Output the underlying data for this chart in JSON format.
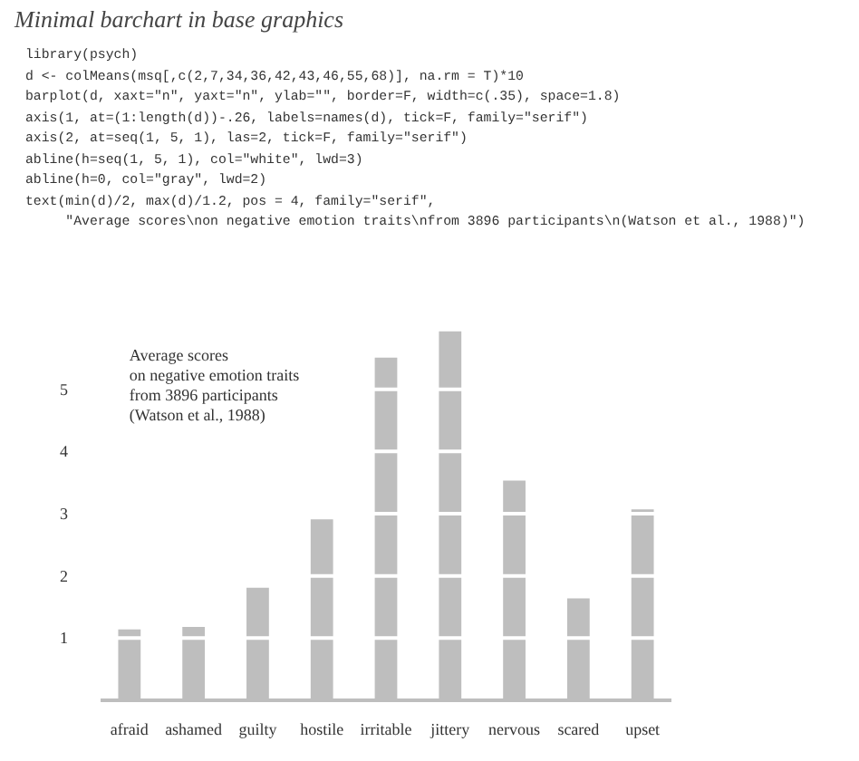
{
  "chart_data": {
    "type": "bar",
    "title": "Minimal barchart in base graphics",
    "subtitle": "library(psych)\nd <- colMeans(msq[,c(2,7,34,36,42,43,46,55,68)], na.rm = T)*10\nbarplot(d, xaxt=\"n\", yaxt=\"n\", ylab=\"\", border=F, width=c(.35), space=1.8)\naxis(1, at=(1:length(d))-.26, labels=names(d), tick=F, family=\"serif\")\naxis(2, at=seq(1, 5, 1), las=2, tick=F, family=\"serif\")\nabline(h=seq(1, 5, 1), col=\"white\", lwd=3)\nabline(h=0, col=\"gray\", lwd=2)\ntext(min(d)/2, max(d)/1.2, pos = 4, family=\"serif\",\n     \"Average scores\\non negative emotion traits\\nfrom 3896 participants\\n(Watson et al., 1988)\")",
    "categories": [
      "afraid",
      "ashamed",
      "guilty",
      "hostile",
      "irritable",
      "jittery",
      "nervous",
      "scared",
      "upset"
    ],
    "values": [
      1.14,
      1.18,
      1.81,
      2.91,
      5.51,
      5.93,
      3.53,
      1.64,
      3.07
    ],
    "color": "#bebebe",
    "ylim": [
      0,
      6
    ],
    "yticks": [
      1,
      2,
      3,
      4,
      5
    ],
    "grid": false,
    "ref_lines": [
      {
        "axis": "y",
        "value": 1,
        "color": "#ffffff"
      },
      {
        "axis": "y",
        "value": 2,
        "color": "#ffffff"
      },
      {
        "axis": "y",
        "value": 3,
        "color": "#ffffff"
      },
      {
        "axis": "y",
        "value": 4,
        "color": "#ffffff"
      },
      {
        "axis": "y",
        "value": 5,
        "color": "#ffffff"
      }
    ],
    "annotations": [
      "Average scores\non negative emotion traits\nfrom 3896 participants\n(Watson et al., 1988)"
    ]
  }
}
